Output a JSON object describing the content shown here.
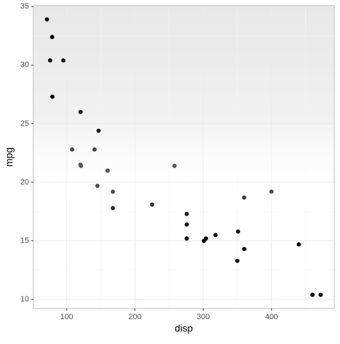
{
  "chart_data": {
    "type": "scatter",
    "x_label": "disp",
    "y_label": "mpg",
    "color": "#000000",
    "grid": true,
    "xlim": [
      51.05,
      492.05
    ],
    "ylim": [
      9.225,
      35.075
    ],
    "xticks": [
      100,
      200,
      300,
      400
    ],
    "yticks": [
      10,
      15,
      20,
      25,
      30,
      35
    ],
    "x": [
      160,
      160,
      108,
      258,
      360,
      225,
      360,
      146.7,
      140.8,
      167.6,
      167.6,
      275.8,
      275.8,
      275.8,
      472,
      460,
      440,
      78.7,
      75.7,
      71.1,
      120.1,
      318,
      304,
      350,
      400,
      79,
      120.3,
      95.1,
      351,
      145,
      301,
      121
    ],
    "values": [
      21,
      21,
      22.8,
      21.4,
      18.7,
      18.1,
      14.3,
      24.4,
      22.8,
      19.2,
      17.8,
      16.4,
      17.3,
      15.2,
      10.4,
      10.4,
      14.7,
      32.4,
      30.4,
      33.9,
      21.5,
      15.5,
      15.2,
      13.3,
      19.2,
      27.3,
      26,
      30.4,
      15.8,
      19.7,
      15,
      21.4
    ]
  }
}
